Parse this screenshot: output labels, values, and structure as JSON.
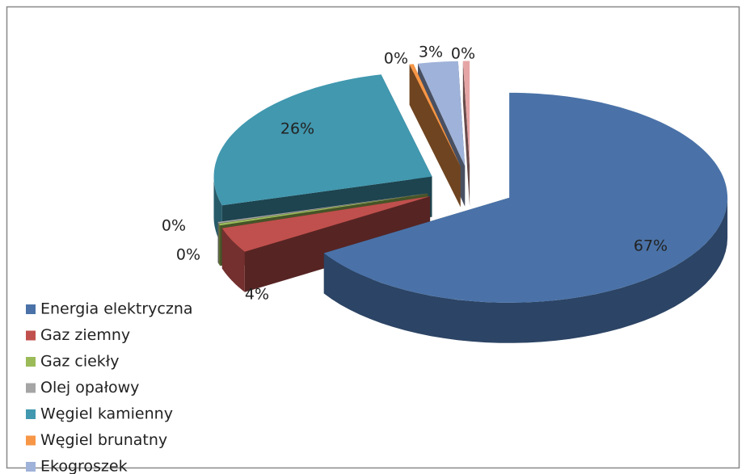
{
  "chart_data": {
    "type": "pie3d",
    "categories": [
      "Energia elektryczna",
      "Gaz ziemny",
      "Gaz ciekły",
      "Olej opałowy",
      "Węgiel kamienny",
      "Węgiel brunatny",
      "Ekogroszek",
      null
    ],
    "values": [
      67,
      4,
      0.3,
      0.2,
      26,
      0.3,
      3,
      0.5
    ],
    "value_labels": [
      "67%",
      "4%",
      "0%",
      "0%",
      "26%",
      "0%",
      "3%",
      "0%"
    ],
    "colors": [
      "#4a72a8",
      "#c0504d",
      "#9bbb59",
      "#a5a5a5",
      "#4198af",
      "#f79646",
      "#9fb2d9",
      "#e6a5a5"
    ],
    "legend": "bottom-left"
  }
}
